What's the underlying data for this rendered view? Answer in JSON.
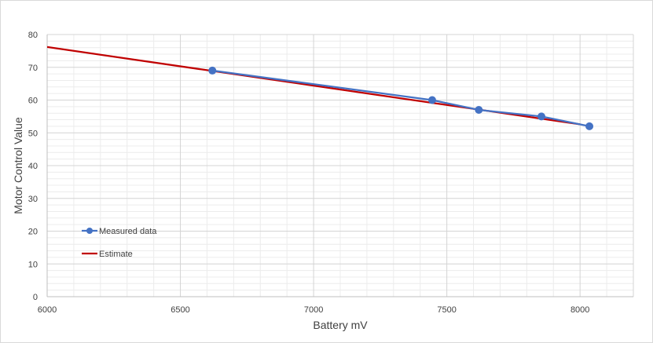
{
  "chart_data": {
    "type": "line",
    "title": "",
    "xlabel": "Battery mV",
    "ylabel": "Motor Control Value",
    "xlim": [
      6000,
      8200
    ],
    "ylim": [
      0,
      80
    ],
    "x_ticks": [
      6000,
      6500,
      7000,
      7500,
      8000
    ],
    "y_ticks": [
      0,
      10,
      20,
      30,
      40,
      50,
      60,
      70,
      80
    ],
    "x_minor_step": 100,
    "y_minor_step": 2,
    "grid": true,
    "legend_position": "left-bottom",
    "series": [
      {
        "name": "Measured data",
        "color": "#4472c4",
        "marker": "circle",
        "x": [
          6620,
          7445,
          7620,
          7855,
          8035
        ],
        "y": [
          69,
          60,
          57,
          55,
          52
        ]
      },
      {
        "name": "Estimate",
        "color": "#c00000",
        "marker": "none",
        "x": [
          6000,
          8000
        ],
        "y": [
          76.2,
          52.6
        ]
      }
    ]
  }
}
